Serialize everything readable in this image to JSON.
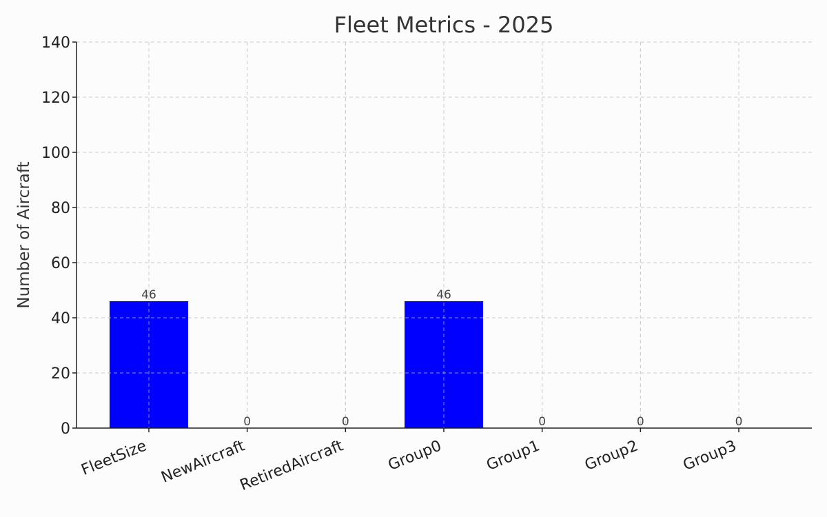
{
  "chart_data": {
    "type": "bar",
    "title": "Fleet Metrics - 2025",
    "xlabel": "",
    "ylabel": "Number of Aircraft",
    "categories": [
      "FleetSize",
      "NewAircraft",
      "RetiredAircraft",
      "Group0",
      "Group1",
      "Group2",
      "Group3"
    ],
    "values": [
      46,
      0,
      0,
      46,
      0,
      0,
      0
    ],
    "data_labels": [
      "46",
      "0",
      "0",
      "46",
      "0",
      "0",
      "0"
    ],
    "ylim": [
      0,
      140
    ],
    "yticks": [
      0,
      20,
      40,
      60,
      80,
      100,
      120,
      140
    ],
    "grid": true,
    "bar_color": "#0000ff"
  }
}
